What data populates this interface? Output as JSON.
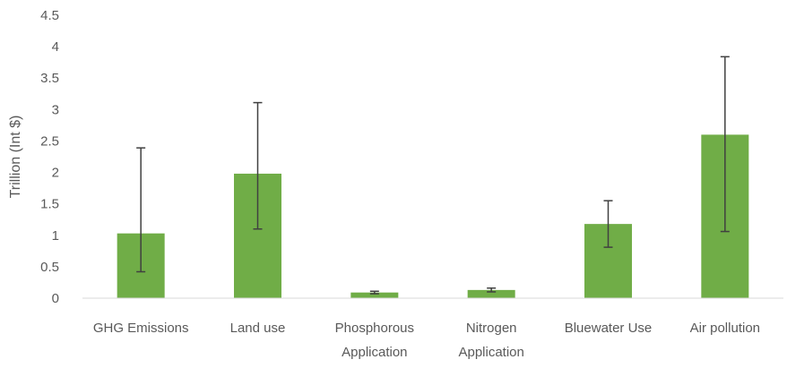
{
  "chart_data": {
    "type": "bar",
    "title": "",
    "xlabel": "",
    "ylabel": "Trillion (Int $)",
    "ylim": [
      0,
      4.5
    ],
    "yticks": [
      "0",
      "0.5",
      "1",
      "1.5",
      "2",
      "2.5",
      "3",
      "3.5",
      "4",
      "4.5"
    ],
    "grid": false,
    "legend": "none",
    "bar_color": "#70ad47",
    "error_bar_color": "#404040",
    "categories": [
      [
        "GHG Emissions"
      ],
      [
        "Land use"
      ],
      [
        "Phosphorous",
        "Application"
      ],
      [
        "Nitrogen",
        "Application"
      ],
      [
        "Bluewater Use"
      ],
      [
        "Air pollution"
      ]
    ],
    "values": [
      1.03,
      1.98,
      0.09,
      0.13,
      1.18,
      2.6
    ],
    "error_low": [
      0.42,
      1.1,
      0.07,
      0.1,
      0.81,
      1.06
    ],
    "error_high": [
      2.39,
      3.11,
      0.11,
      0.16,
      1.55,
      3.84
    ]
  }
}
